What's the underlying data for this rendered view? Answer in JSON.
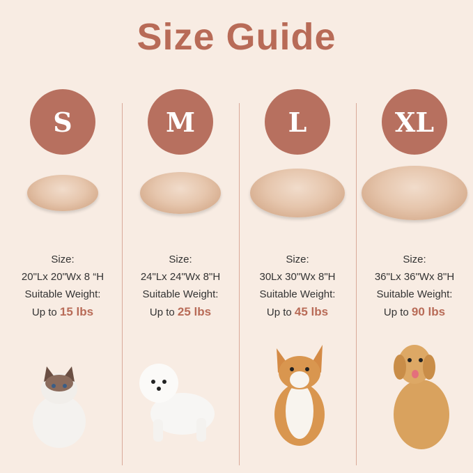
{
  "title": "Size Guide",
  "accent_color": "#b86b57",
  "sizes": [
    {
      "label": "S",
      "size_label": "Size:",
      "dimensions": "20\"Lx 20\"Wx 8 “H",
      "weight_label": "Suitable Weight:",
      "up_to": "Up to",
      "weight": "15 lbs",
      "pet": "cat"
    },
    {
      "label": "M",
      "size_label": "Size:",
      "dimensions": "24\"Lx 24\"Wx 8\"H",
      "weight_label": "Suitable Weight:",
      "up_to": "Up to",
      "weight": "25 lbs",
      "pet": "poodle"
    },
    {
      "label": "L",
      "size_label": "Size:",
      "dimensions": "30Lx 30\"Wx 8\"H",
      "weight_label": "Suitable Weight:",
      "up_to": "Up to",
      "weight": "45 lbs",
      "pet": "corgi"
    },
    {
      "label": "XL",
      "size_label": "Size:",
      "dimensions": "36\"Lx 36\"Wx 8\"H",
      "weight_label": "Suitable Weight:",
      "up_to": "Up to",
      "weight": "90 lbs",
      "pet": "golden-retriever"
    }
  ]
}
